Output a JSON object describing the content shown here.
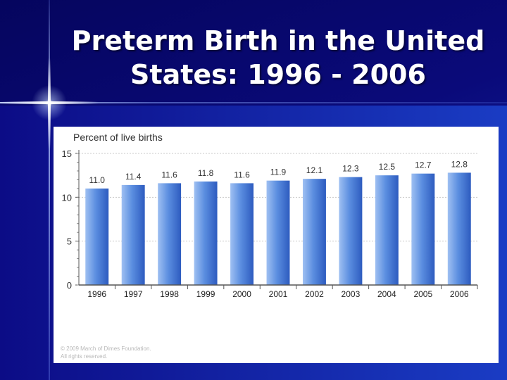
{
  "slide": {
    "title_line1": "Preterm Birth in the United",
    "title_line2": "States: 1996 - 2006"
  },
  "colors": {
    "bar_light": "#9fc0f2",
    "bar_mid": "#5b8ee0",
    "bar_dark": "#2d5bbf",
    "axis": "#555555",
    "grid": "#c8c8c8"
  },
  "chart_data": {
    "type": "bar",
    "title": "",
    "ylabel": "Percent of live births",
    "xlabel": "",
    "categories": [
      "1996",
      "1997",
      "1998",
      "1999",
      "2000",
      "2001",
      "2002",
      "2003",
      "2004",
      "2005",
      "2006"
    ],
    "values": [
      11.0,
      11.4,
      11.6,
      11.8,
      11.6,
      11.9,
      12.1,
      12.3,
      12.5,
      12.7,
      12.8
    ],
    "value_labels": [
      "11.0",
      "11.4",
      "11.6",
      "11.8",
      "11.6",
      "11.9",
      "12.1",
      "12.3",
      "12.5",
      "12.7",
      "12.8"
    ],
    "ylim": [
      0,
      15
    ],
    "yticks": [
      0,
      5,
      10,
      15
    ],
    "grid": true,
    "footnote_line1": "© 2009 March of Dimes Foundation.",
    "footnote_line2": "All rights reserved."
  }
}
